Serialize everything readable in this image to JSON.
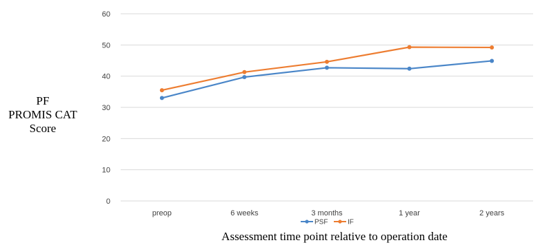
{
  "chart_data": {
    "type": "line",
    "categories": [
      "preop",
      "6 weeks",
      "3 months",
      "1 year",
      "2 years"
    ],
    "series": [
      {
        "name": "PSF",
        "values": [
          33.0,
          39.7,
          42.7,
          42.4,
          44.9
        ],
        "color": "#4a86c8"
      },
      {
        "name": "IF",
        "values": [
          35.5,
          41.3,
          44.6,
          49.3,
          49.2
        ],
        "color": "#ed7d31"
      }
    ],
    "ylabel_lines": [
      "PF",
      "PROMIS CAT",
      "Score"
    ],
    "xlabel": "Assessment time point relative to operation date",
    "ylim": [
      0,
      60
    ],
    "yticks": [
      0,
      10,
      20,
      30,
      40,
      50,
      60
    ],
    "grid": true,
    "legend": "bottom"
  }
}
